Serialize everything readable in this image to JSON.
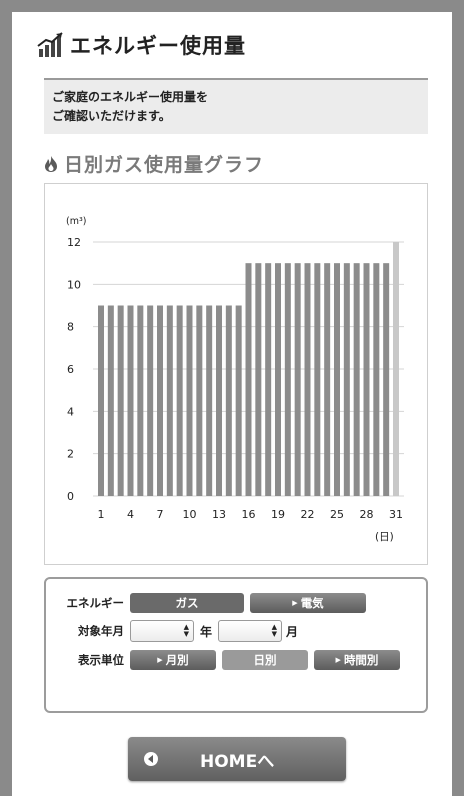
{
  "header": {
    "title": "エネルギー使用量",
    "icon": "energy-chart-icon"
  },
  "description": {
    "line1": "ご家庭のエネルギー使用量を",
    "line2": "ご確認いただけます。"
  },
  "section": {
    "title": "日別ガス使用量グラフ",
    "icon": "flame-icon"
  },
  "chart_data": {
    "type": "bar",
    "ylabel": "(m³)",
    "xlabel": "(日)",
    "ylim": [
      0,
      12
    ],
    "yticks": [
      0,
      2,
      4,
      6,
      8,
      10,
      12
    ],
    "xtick_labels": [
      "1",
      "4",
      "7",
      "10",
      "13",
      "16",
      "19",
      "22",
      "25",
      "28",
      "31"
    ],
    "categories": [
      "1",
      "2",
      "3",
      "4",
      "5",
      "6",
      "7",
      "8",
      "9",
      "10",
      "11",
      "12",
      "13",
      "14",
      "15",
      "16",
      "17",
      "18",
      "19",
      "20",
      "21",
      "22",
      "23",
      "24",
      "25",
      "26",
      "27",
      "28",
      "29",
      "30",
      "31"
    ],
    "values": [
      9,
      9,
      9,
      9,
      9,
      9,
      9,
      9,
      9,
      9,
      9,
      9,
      9,
      9,
      9,
      11,
      11,
      11,
      11,
      11,
      11,
      11,
      11,
      11,
      11,
      11,
      11,
      11,
      11,
      11,
      12
    ],
    "grid": true,
    "bar_color": "#8c8c8c",
    "last_bar_color": "#c8c8c8"
  },
  "controls": {
    "energy_label": "エネルギー",
    "gas_label": "ガス",
    "electric_label": "電気",
    "period_label": "対象年月",
    "year_unit": "年",
    "month_unit": "月",
    "unit_label": "表示単位",
    "monthly_label": "月別",
    "daily_label": "日別",
    "hourly_label": "時間別"
  },
  "home": {
    "label": "HOMEへ"
  }
}
